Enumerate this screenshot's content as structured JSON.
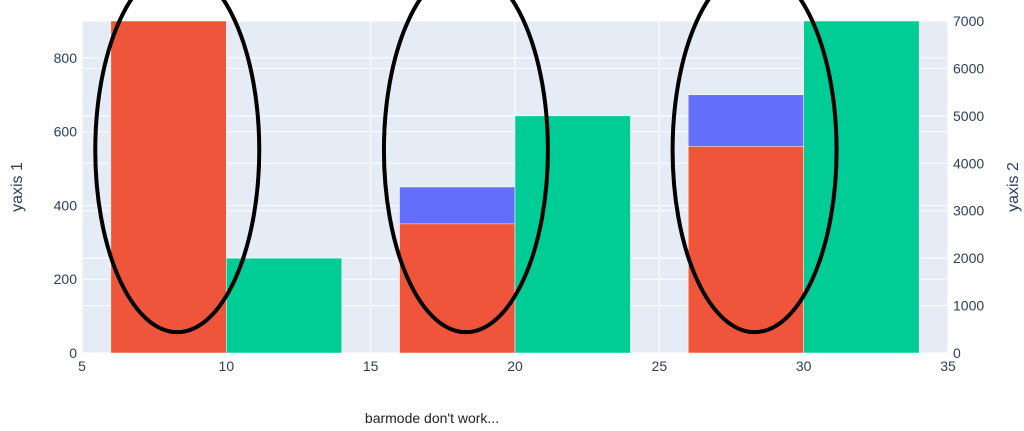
{
  "chart_data": {
    "type": "bar",
    "title": "",
    "caption": "barmode don't work...",
    "xlabel": "",
    "xlim": [
      5,
      35
    ],
    "x_ticks": [
      "5",
      "10",
      "15",
      "20",
      "25",
      "30",
      "35"
    ],
    "y1": {
      "label": "yaxis 1",
      "ylim": [
        0,
        900
      ],
      "ticks": [
        "0",
        "200",
        "400",
        "600",
        "800"
      ]
    },
    "y2": {
      "label": "yaxis 2",
      "ylim": [
        0,
        7000
      ],
      "ticks": [
        "0",
        "1000",
        "2000",
        "3000",
        "4000",
        "5000",
        "6000",
        "7000"
      ]
    },
    "grid": true,
    "legend": "none",
    "series": [
      {
        "axis": "y1",
        "color": "#636efa",
        "bar_width": 4,
        "x": [
          8,
          18,
          28
        ],
        "values": [
          900,
          450,
          700
        ]
      },
      {
        "axis": "y1",
        "color": "#ef553b",
        "bar_width": 4,
        "x": [
          8,
          18,
          28
        ],
        "values": [
          900,
          350,
          560
        ]
      },
      {
        "axis": "y2",
        "color": "#00cc96",
        "bar_width": 4,
        "x": [
          12,
          22,
          32
        ],
        "values": [
          2000,
          5000,
          7000
        ]
      }
    ],
    "annotations": [
      {
        "type": "hand-drawn-ellipse",
        "x_center": 8.3,
        "y1_center": 550
      },
      {
        "type": "hand-drawn-ellipse",
        "x_center": 18.3,
        "y1_center": 550
      },
      {
        "type": "hand-drawn-ellipse",
        "x_center": 28.3,
        "y1_center": 550
      }
    ]
  }
}
